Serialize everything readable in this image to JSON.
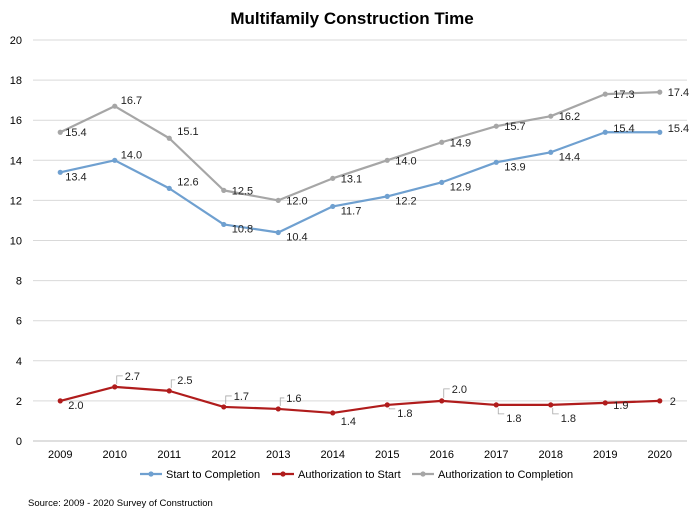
{
  "chart_data": {
    "type": "line",
    "title": "Multifamily Construction Time",
    "x": [
      "2009",
      "2010",
      "2011",
      "2012",
      "2013",
      "2014",
      "2015",
      "2016",
      "2017",
      "2018",
      "2019",
      "2020"
    ],
    "ylim": [
      0,
      20
    ],
    "yticks": [
      "0",
      "2",
      "4",
      "6",
      "8",
      "10",
      "12",
      "14",
      "16",
      "18",
      "20"
    ],
    "grid": true,
    "legend_position": "bottom",
    "series": [
      {
        "name": "Start to Completion",
        "color": "#6fa0d0",
        "values": [
          13.4,
          14.0,
          12.6,
          10.8,
          10.4,
          11.7,
          12.2,
          12.9,
          13.9,
          14.4,
          15.4,
          15.4
        ],
        "labels": [
          "13.4",
          "14.0",
          "12.6",
          "10.8",
          "10.4",
          "11.7",
          "12.2",
          "12.9",
          "13.9",
          "14.4",
          "15.4",
          "15.4"
        ]
      },
      {
        "name": "Authorization to Start",
        "color": "#b01c1c",
        "values": [
          2.0,
          2.7,
          2.5,
          1.7,
          1.6,
          1.4,
          1.8,
          2.0,
          1.8,
          1.8,
          1.9,
          2.0
        ],
        "labels": [
          "2.0",
          "2.7",
          "2.5",
          "1.7",
          "1.6",
          "1.4",
          "1.8",
          "2.0",
          "1.8",
          "1.8",
          "1.9",
          "2"
        ]
      },
      {
        "name": "Authorization to Completion",
        "color": "#a6a6a6",
        "values": [
          15.4,
          16.7,
          15.1,
          12.5,
          12.0,
          13.1,
          14.0,
          14.9,
          15.7,
          16.2,
          17.3,
          17.4
        ],
        "labels": [
          "15.4",
          "16.7",
          "15.1",
          "12.5",
          "12.0",
          "13.1",
          "14.0",
          "14.9",
          "15.7",
          "16.2",
          "17.3",
          "17.4"
        ]
      }
    ],
    "source": "Source: 2009 - 2020 Survey of Construction"
  }
}
